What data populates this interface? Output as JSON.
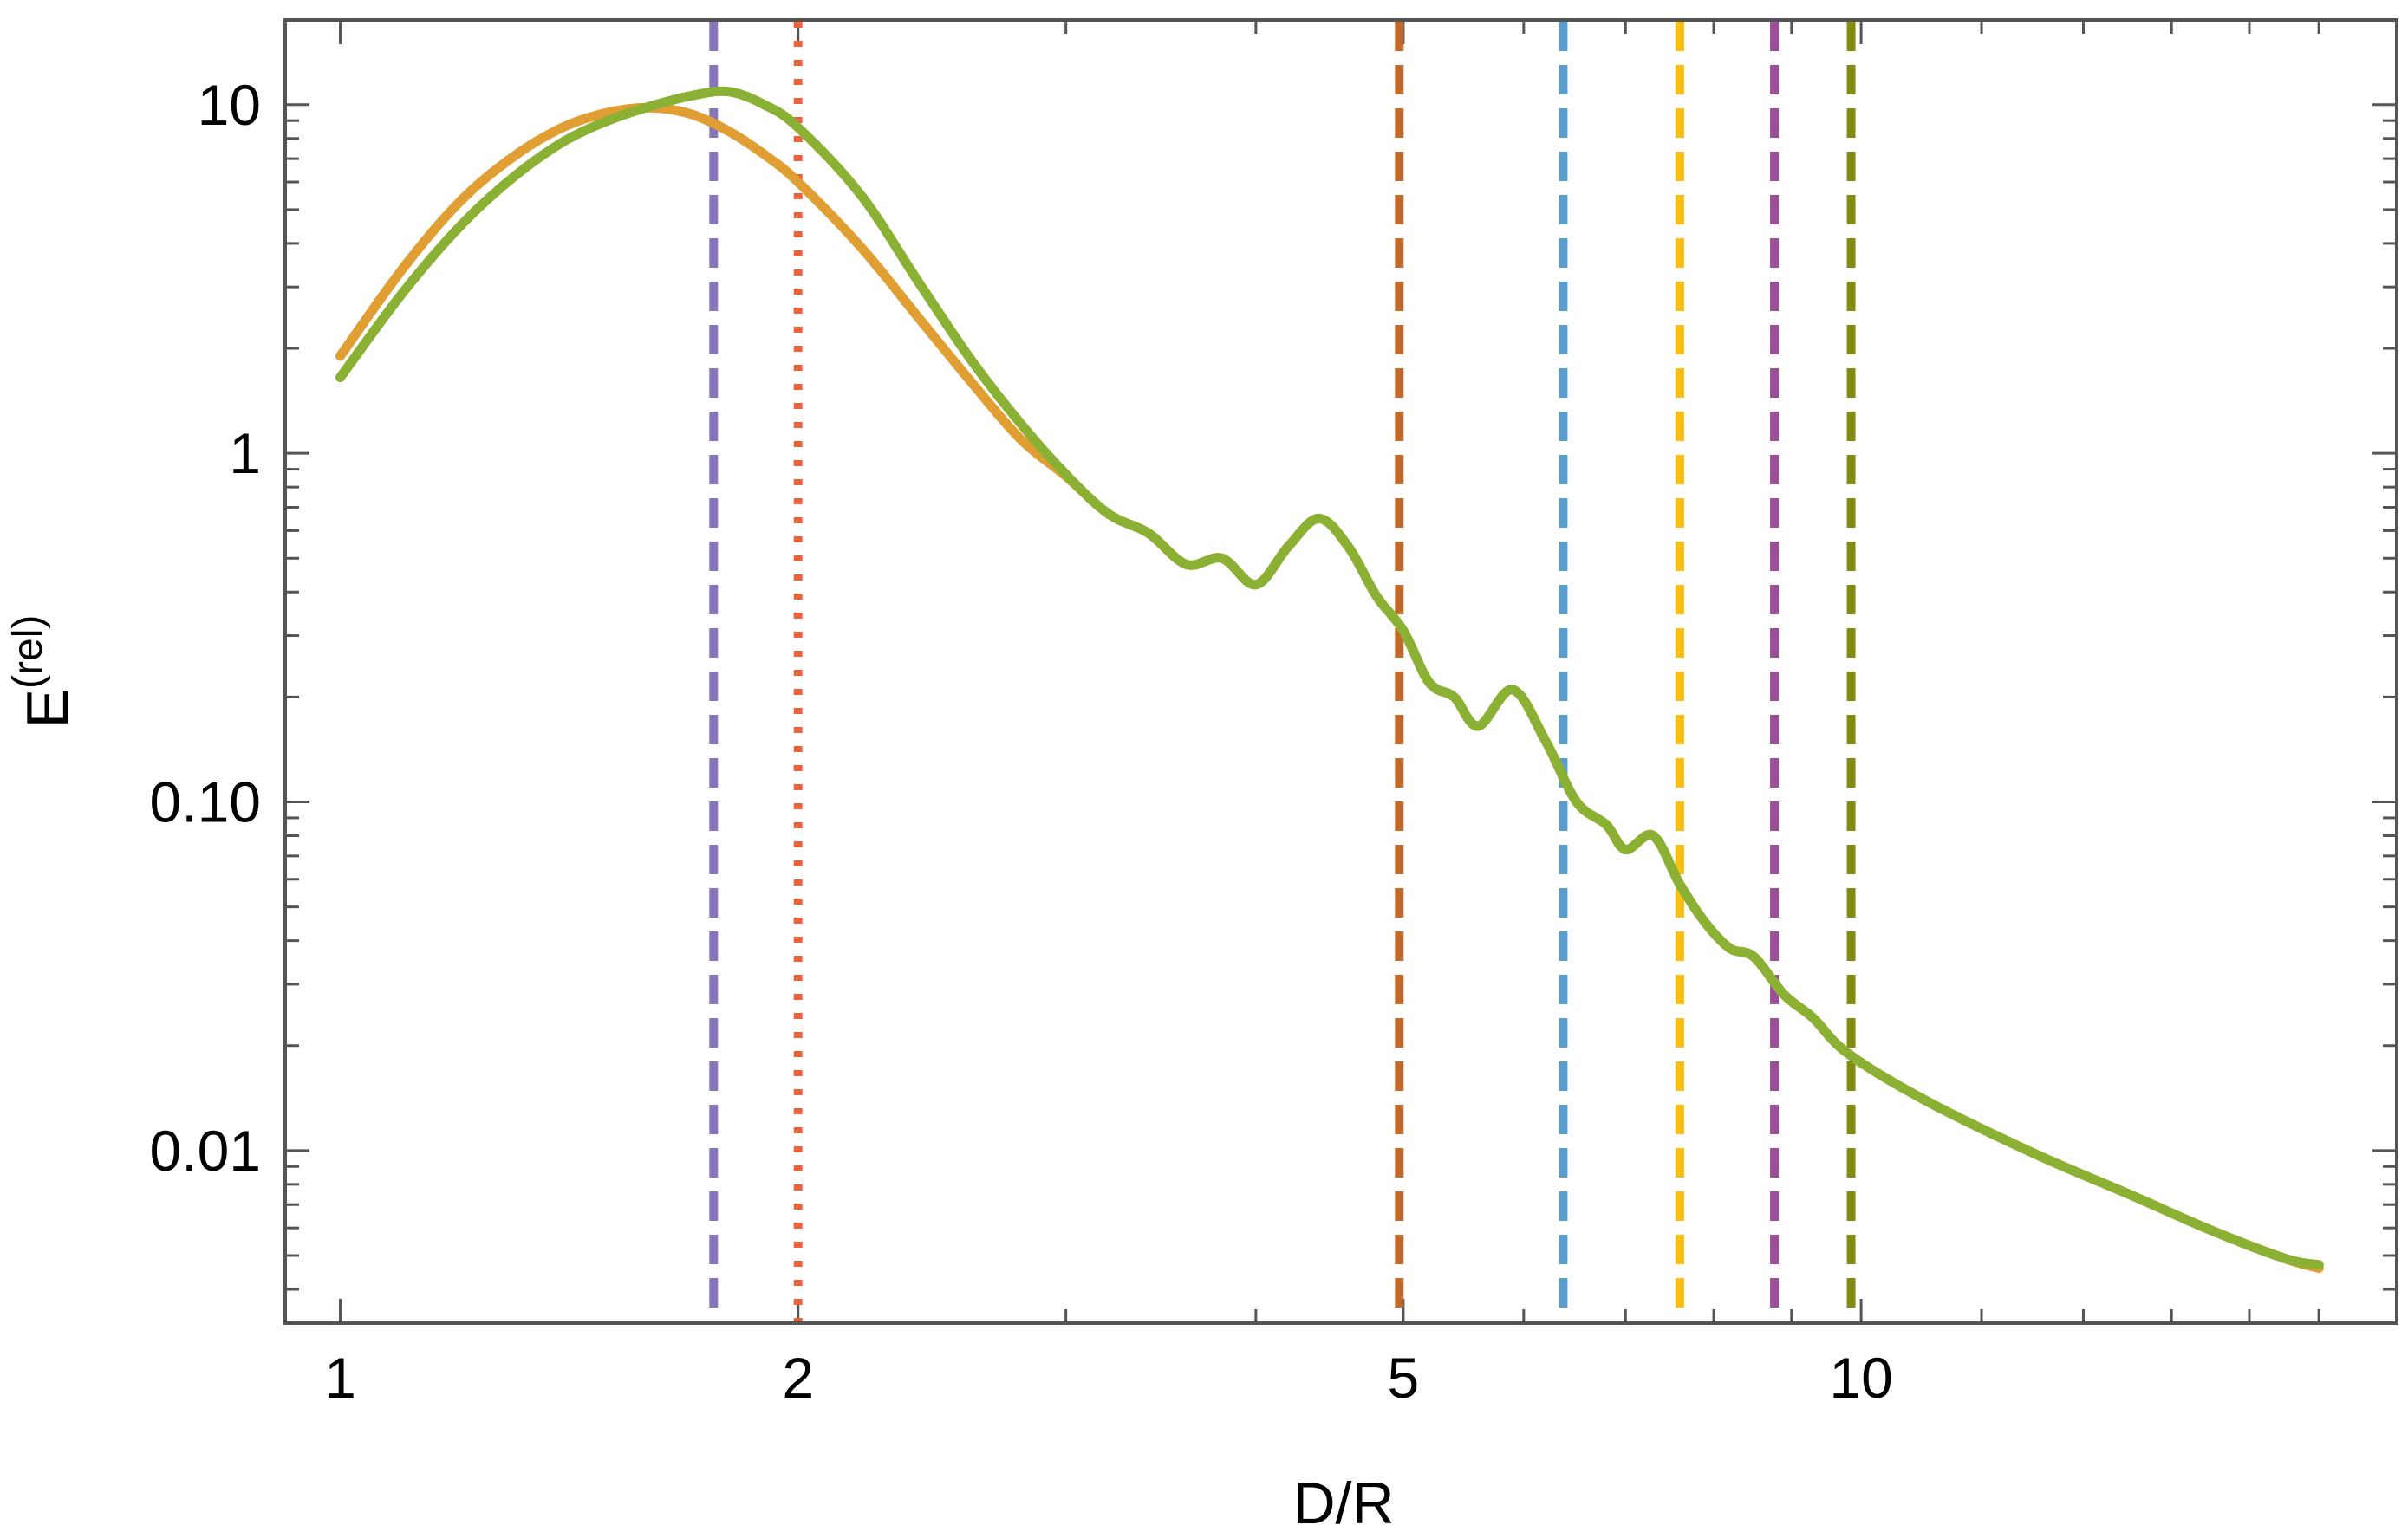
{
  "chart_data": {
    "type": "line",
    "xlabel": "D/R",
    "ylabel": "E",
    "ylabel_superscript": "(rel)",
    "xscale": "log",
    "yscale": "log",
    "xlim": [
      0.92,
      22.5
    ],
    "ylim": [
      0.0032,
      17.5
    ],
    "x_ticks": [
      {
        "value": 1,
        "label": "1"
      },
      {
        "value": 2,
        "label": "2"
      },
      {
        "value": 5,
        "label": "5"
      },
      {
        "value": 10,
        "label": "10"
      }
    ],
    "y_ticks": [
      {
        "value": 10,
        "label": "10"
      },
      {
        "value": 1,
        "label": "1"
      },
      {
        "value": 0.1,
        "label": "0.10"
      },
      {
        "value": 0.01,
        "label": "0.01"
      }
    ],
    "grid": false,
    "legend": "none",
    "series": [
      {
        "color": "#E19E33",
        "points": [
          [
            1.0,
            1.9
          ],
          [
            1.1,
            3.4
          ],
          [
            1.2,
            5.3
          ],
          [
            1.3,
            7.1
          ],
          [
            1.4,
            8.6
          ],
          [
            1.5,
            9.5
          ],
          [
            1.6,
            9.8
          ],
          [
            1.7,
            9.4
          ],
          [
            1.8,
            8.4
          ],
          [
            1.9,
            7.2
          ],
          [
            2.0,
            6.0
          ],
          [
            2.2,
            3.9
          ],
          [
            2.4,
            2.45
          ],
          [
            2.6,
            1.6
          ],
          [
            2.8,
            1.1
          ],
          [
            3.0,
            0.86
          ],
          [
            3.2,
            0.67
          ],
          [
            3.4,
            0.59
          ],
          [
            3.6,
            0.48
          ],
          [
            3.8,
            0.5
          ],
          [
            4.0,
            0.42
          ],
          [
            4.2,
            0.54
          ],
          [
            4.4,
            0.65
          ],
          [
            4.6,
            0.54
          ],
          [
            4.8,
            0.39
          ],
          [
            5.0,
            0.31
          ],
          [
            5.2,
            0.22
          ],
          [
            5.4,
            0.2
          ],
          [
            5.6,
            0.165
          ],
          [
            5.9,
            0.21
          ],
          [
            6.2,
            0.15
          ],
          [
            6.5,
            0.1
          ],
          [
            6.8,
            0.086
          ],
          [
            7.0,
            0.073
          ],
          [
            7.3,
            0.08
          ],
          [
            7.6,
            0.058
          ],
          [
            7.9,
            0.045
          ],
          [
            8.2,
            0.038
          ],
          [
            8.5,
            0.036
          ],
          [
            8.9,
            0.028
          ],
          [
            9.3,
            0.024
          ],
          [
            9.8,
            0.019
          ],
          [
            11.0,
            0.014
          ],
          [
            13.0,
            0.0098
          ],
          [
            15.0,
            0.0075
          ],
          [
            17.0,
            0.0059
          ],
          [
            19.0,
            0.0049
          ],
          [
            20.0,
            0.0046
          ]
        ]
      },
      {
        "color": "#8AB133",
        "points": [
          [
            1.0,
            1.65
          ],
          [
            1.1,
            2.9
          ],
          [
            1.2,
            4.5
          ],
          [
            1.3,
            6.2
          ],
          [
            1.4,
            7.8
          ],
          [
            1.5,
            9.0
          ],
          [
            1.6,
            9.9
          ],
          [
            1.7,
            10.6
          ],
          [
            1.8,
            10.9
          ],
          [
            1.9,
            10.0
          ],
          [
            2.0,
            8.6
          ],
          [
            2.2,
            5.5
          ],
          [
            2.4,
            3.1
          ],
          [
            2.6,
            1.85
          ],
          [
            2.8,
            1.22
          ],
          [
            3.0,
            0.87
          ],
          [
            3.2,
            0.67
          ],
          [
            3.4,
            0.59
          ],
          [
            3.6,
            0.48
          ],
          [
            3.8,
            0.5
          ],
          [
            4.0,
            0.42
          ],
          [
            4.2,
            0.54
          ],
          [
            4.4,
            0.65
          ],
          [
            4.6,
            0.54
          ],
          [
            4.8,
            0.39
          ],
          [
            5.0,
            0.31
          ],
          [
            5.2,
            0.22
          ],
          [
            5.4,
            0.2
          ],
          [
            5.6,
            0.165
          ],
          [
            5.9,
            0.21
          ],
          [
            6.2,
            0.15
          ],
          [
            6.5,
            0.1
          ],
          [
            6.8,
            0.086
          ],
          [
            7.0,
            0.073
          ],
          [
            7.3,
            0.08
          ],
          [
            7.6,
            0.058
          ],
          [
            7.9,
            0.045
          ],
          [
            8.2,
            0.038
          ],
          [
            8.5,
            0.036
          ],
          [
            8.9,
            0.028
          ],
          [
            9.3,
            0.024
          ],
          [
            9.8,
            0.019
          ],
          [
            11.0,
            0.014
          ],
          [
            13.0,
            0.0098
          ],
          [
            15.0,
            0.0075
          ],
          [
            17.0,
            0.0059
          ],
          [
            19.0,
            0.0049
          ],
          [
            20.0,
            0.0047
          ]
        ]
      }
    ],
    "vertical_lines": [
      {
        "x": 1.76,
        "color": "#8877B8",
        "style": "dashed"
      },
      {
        "x": 2.0,
        "color": "#E8643A",
        "style": "dotted"
      },
      {
        "x": 4.97,
        "color": "#C1692A",
        "style": "dashed"
      },
      {
        "x": 6.37,
        "color": "#5B9DCB",
        "style": "dashed"
      },
      {
        "x": 7.6,
        "color": "#FCC013",
        "style": "dashed"
      },
      {
        "x": 8.77,
        "color": "#9B4D97",
        "style": "dashed"
      },
      {
        "x": 9.85,
        "color": "#838B10",
        "style": "dashed"
      }
    ]
  }
}
